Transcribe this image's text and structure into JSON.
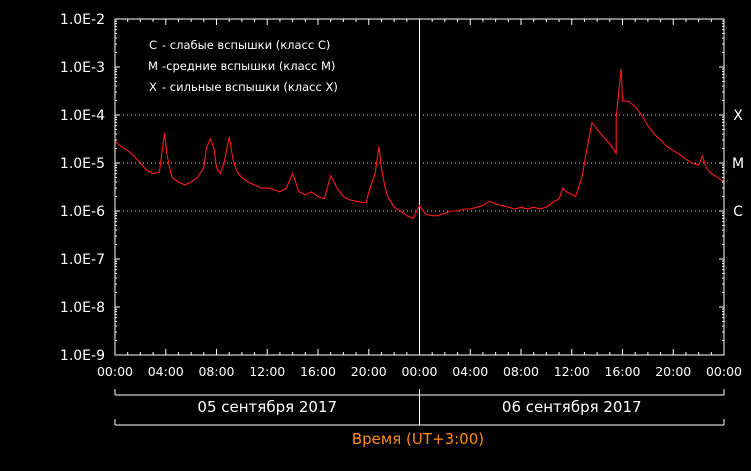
{
  "chart_data": {
    "type": "line",
    "y_scale": "log",
    "ylim": [
      1e-09,
      0.01
    ],
    "y_ticks": [
      "1.0E-9",
      "1.0E-8",
      "1.0E-7",
      "1.0E-6",
      "1.0E-5",
      "1.0E-4",
      "1.0E-3",
      "1.0E-2"
    ],
    "x_ticks": [
      "00:00",
      "04:00",
      "08:00",
      "12:00",
      "16:00",
      "20:00",
      "00:00",
      "04:00",
      "08:00",
      "12:00",
      "16:00",
      "20:00",
      "00:00"
    ],
    "x_range_hours": [
      0,
      48
    ],
    "day_labels": [
      "05 сентября 2017",
      "06 сентября 2017"
    ],
    "xlabel": "Время (UT+3:00)",
    "class_levels": [
      {
        "label": "X",
        "value": 0.0001
      },
      {
        "label": "M",
        "value": 1e-05
      },
      {
        "label": "C",
        "value": 1e-06
      }
    ],
    "legend": [
      {
        "letter": "C",
        "text": "- слабые вспышки (класс С)"
      },
      {
        "letter": "M",
        "text": "-средние вспышки (класс М)"
      },
      {
        "letter": "X",
        "text": "- сильные вспышки (класс Х)"
      }
    ],
    "grid": "dotted horizontal at class levels; solid vertical at day boundary",
    "legend_position": "top-left",
    "colors": {
      "background": "#000000",
      "series": "#ff1a1a",
      "axes": "#ffffff",
      "xlabel": "#ff8c1a"
    },
    "series": [
      {
        "x": [
          0,
          0.5,
          1,
          1.5,
          2,
          2.5,
          3,
          3.5,
          3.9,
          4.1,
          4.3,
          4.5,
          5,
          5.5,
          6,
          6.5,
          7,
          7.2,
          7.5,
          7.8,
          8,
          8.3,
          8.6,
          9,
          9.3,
          9.5,
          9.7,
          10,
          10.5,
          11,
          11.5,
          12,
          12.5,
          13,
          13.5,
          14,
          14.5,
          15,
          15.5,
          16,
          16.5,
          17,
          17.5,
          18,
          18.5,
          19,
          19.5,
          19.8,
          20,
          20.5,
          20.8,
          21,
          21.3,
          21.5,
          22,
          22.5,
          23,
          23.5,
          24,
          24.5,
          25,
          25.5,
          26,
          26.5,
          27,
          27.5,
          28,
          28.5,
          29,
          29.5,
          30,
          30.5,
          31,
          31.5,
          32,
          32.5,
          33,
          33.5,
          34,
          34.5,
          35,
          35.3,
          35.6,
          36,
          36.3,
          36.8,
          37.2,
          37.6,
          38,
          38.5,
          39,
          39.5,
          39.5,
          39.9,
          40,
          40.5,
          41,
          41.5,
          42,
          42.5,
          43,
          43.5,
          44,
          44.5,
          45,
          45.5,
          46,
          46.3,
          46.6,
          47,
          47.5,
          48
        ],
        "y": [
          2.8e-05,
          2.2e-05,
          1.8e-05,
          1.4e-05,
          1e-05,
          7e-06,
          6e-06,
          6.5e-06,
          4.2e-05,
          1.5e-05,
          8e-06,
          5e-06,
          4e-06,
          3.5e-06,
          4e-06,
          5e-06,
          8e-06,
          2e-05,
          3.2e-05,
          2e-05,
          8e-06,
          6e-06,
          1e-05,
          3.5e-05,
          1.2e-05,
          8e-06,
          6e-06,
          5e-06,
          4e-06,
          3.5e-06,
          3e-06,
          3e-06,
          2.8e-06,
          2.5e-06,
          3e-06,
          6e-06,
          2.5e-06,
          2.2e-06,
          2.5e-06,
          2e-06,
          1.8e-06,
          5.5e-06,
          3e-06,
          2e-06,
          1.7e-06,
          1.6e-06,
          1.5e-06,
          1.5e-06,
          2.5e-06,
          6e-06,
          2.2e-05,
          8e-06,
          3e-06,
          2e-06,
          1.2e-06,
          1e-06,
          8e-07,
          7e-07,
          1.3e-06,
          8.5e-07,
          8e-07,
          8e-07,
          9e-07,
          1e-06,
          1e-06,
          1.1e-06,
          1.1e-06,
          1.2e-06,
          1.3e-06,
          1.6e-06,
          1.4e-06,
          1.3e-06,
          1.2e-06,
          1.1e-06,
          1.2e-06,
          1.1e-06,
          1.2e-06,
          1.1e-06,
          1.2e-06,
          1.5e-06,
          1.8e-06,
          3e-06,
          2.5e-06,
          2.2e-06,
          2e-06,
          5e-06,
          2e-05,
          7e-05,
          5e-05,
          3.5e-05,
          2.5e-05,
          1.6e-05,
          9e-05,
          0.00093,
          0.0002,
          0.00019,
          0.00015,
          0.0001,
          6e-05,
          4e-05,
          3e-05,
          2.2e-05,
          1.8e-05,
          1.5e-05,
          1.2e-05,
          1e-05,
          9e-06,
          1.4e-05,
          8e-06,
          6e-06,
          5e-06,
          4e-06
        ]
      }
    ]
  }
}
